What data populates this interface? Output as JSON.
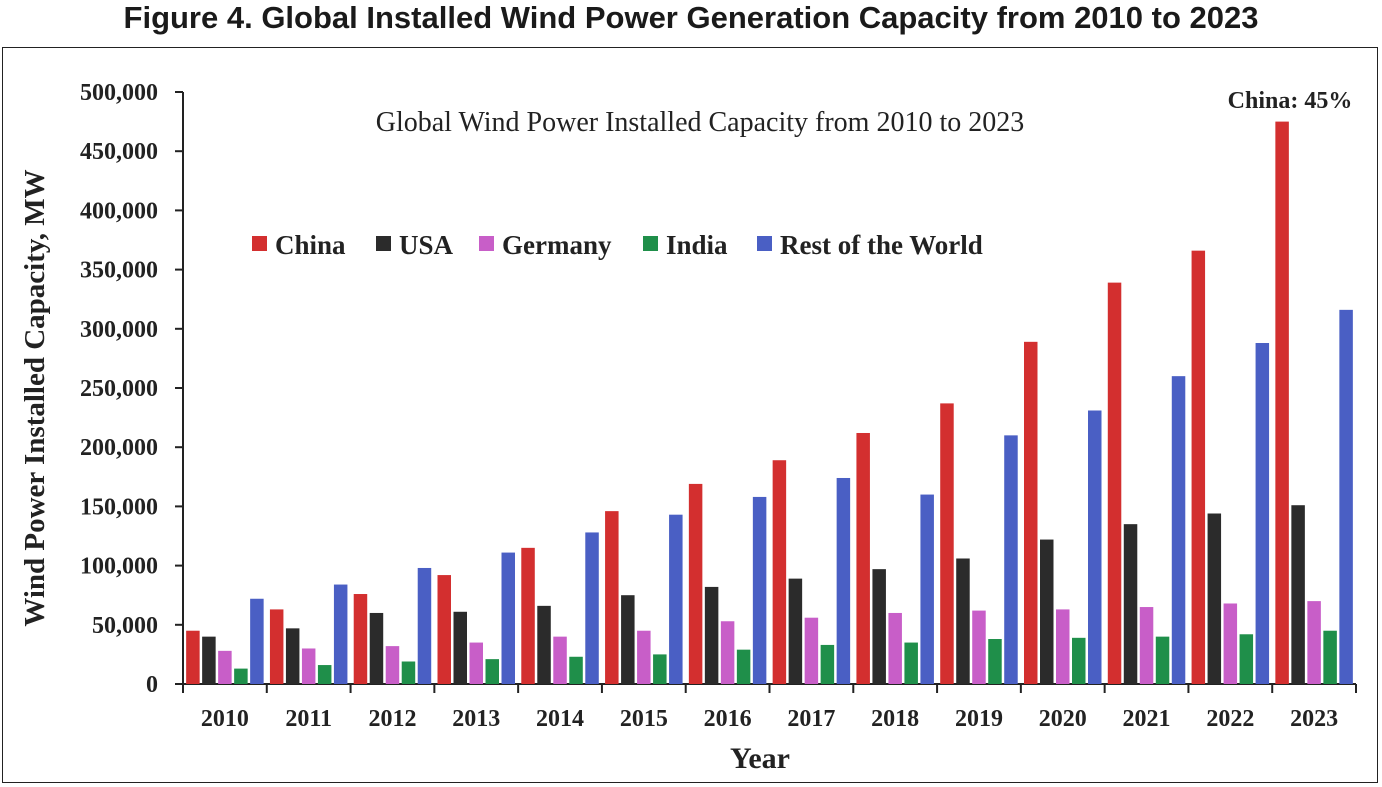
{
  "figure_title": "Figure 4. Global Installed Wind Power Generation Capacity from 2010 to 2023",
  "chart_data": {
    "type": "bar",
    "title": "Global Wind Power Installed Capacity from 2010 to 2023",
    "xlabel": "Year",
    "ylabel": "Wind Power Installed Capacity, MW",
    "ylim": [
      0,
      500000
    ],
    "y_ticks": [
      "0",
      "50,000",
      "100,000",
      "150,000",
      "200,000",
      "250,000",
      "300,000",
      "350,000",
      "400,000",
      "450,000",
      "500,000"
    ],
    "categories": [
      "2010",
      "2011",
      "2012",
      "2013",
      "2014",
      "2015",
      "2016",
      "2017",
      "2018",
      "2019",
      "2020",
      "2021",
      "2022",
      "2023"
    ],
    "grid": false,
    "legend_position": "top-left, inside plot",
    "annotation": "China: 45%",
    "series": [
      {
        "name": "China",
        "color": "#d32f2f",
        "values": [
          45000,
          63000,
          76000,
          92000,
          115000,
          146000,
          169000,
          189000,
          212000,
          237000,
          289000,
          339000,
          366000,
          475000
        ]
      },
      {
        "name": "USA",
        "color": "#2b2b2b",
        "values": [
          40000,
          47000,
          60000,
          61000,
          66000,
          75000,
          82000,
          89000,
          97000,
          106000,
          122000,
          135000,
          144000,
          151000
        ]
      },
      {
        "name": "Germany",
        "color": "#c85ec8",
        "values": [
          28000,
          30000,
          32000,
          35000,
          40000,
          45000,
          53000,
          56000,
          60000,
          62000,
          63000,
          65000,
          68000,
          70000
        ]
      },
      {
        "name": "India",
        "color": "#1f8f4a",
        "values": [
          13000,
          16000,
          19000,
          21000,
          23000,
          25000,
          29000,
          33000,
          35000,
          38000,
          39000,
          40000,
          42000,
          45000
        ]
      },
      {
        "name": "Rest of the World",
        "color": "#4a5fc4",
        "values": [
          72000,
          84000,
          98000,
          111000,
          128000,
          143000,
          158000,
          174000,
          160000,
          210000,
          231000,
          260000,
          288000,
          316000
        ]
      }
    ]
  }
}
